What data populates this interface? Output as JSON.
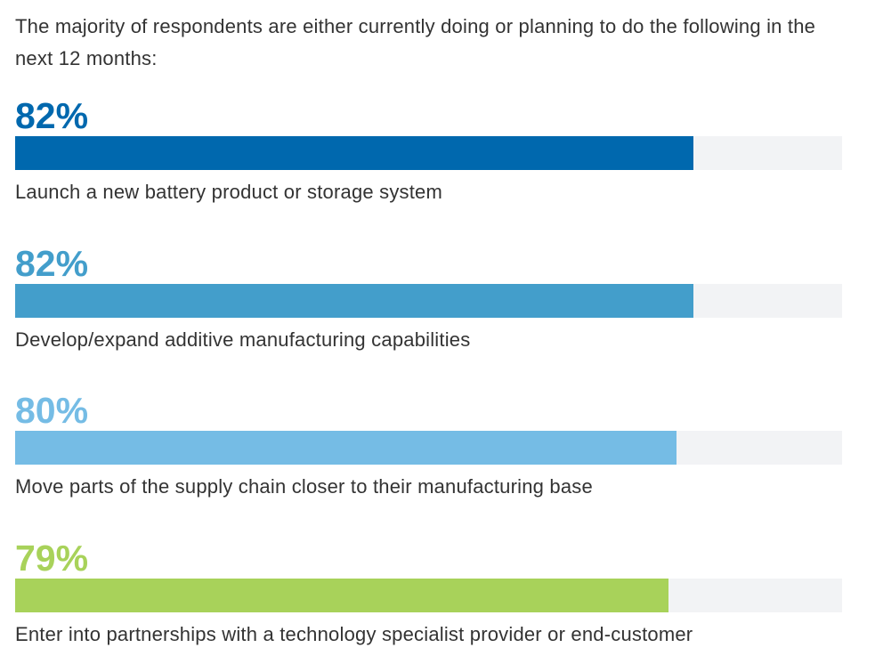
{
  "intro": "The majority of respondents are either currently doing or planning to do the following in the next 12 months:",
  "chart_data": {
    "type": "bar",
    "orientation": "horizontal",
    "xlim": [
      0,
      100
    ],
    "unit": "%",
    "items": [
      {
        "label": "Launch a new battery product or storage system",
        "value": 82,
        "display": "82%",
        "color": "#0068ae"
      },
      {
        "label": "Develop/expand additive manufacturing capabilities",
        "value": 82,
        "display": "82%",
        "color": "#439ecb"
      },
      {
        "label": "Move parts of the supply chain closer to their manufacturing base",
        "value": 80,
        "display": "80%",
        "color": "#75bce5"
      },
      {
        "label": "Enter into partnerships with a technology specialist provider or end-customer",
        "value": 79,
        "display": "79%",
        "color": "#a8d25a"
      }
    ],
    "track_color": "#f2f3f5"
  }
}
